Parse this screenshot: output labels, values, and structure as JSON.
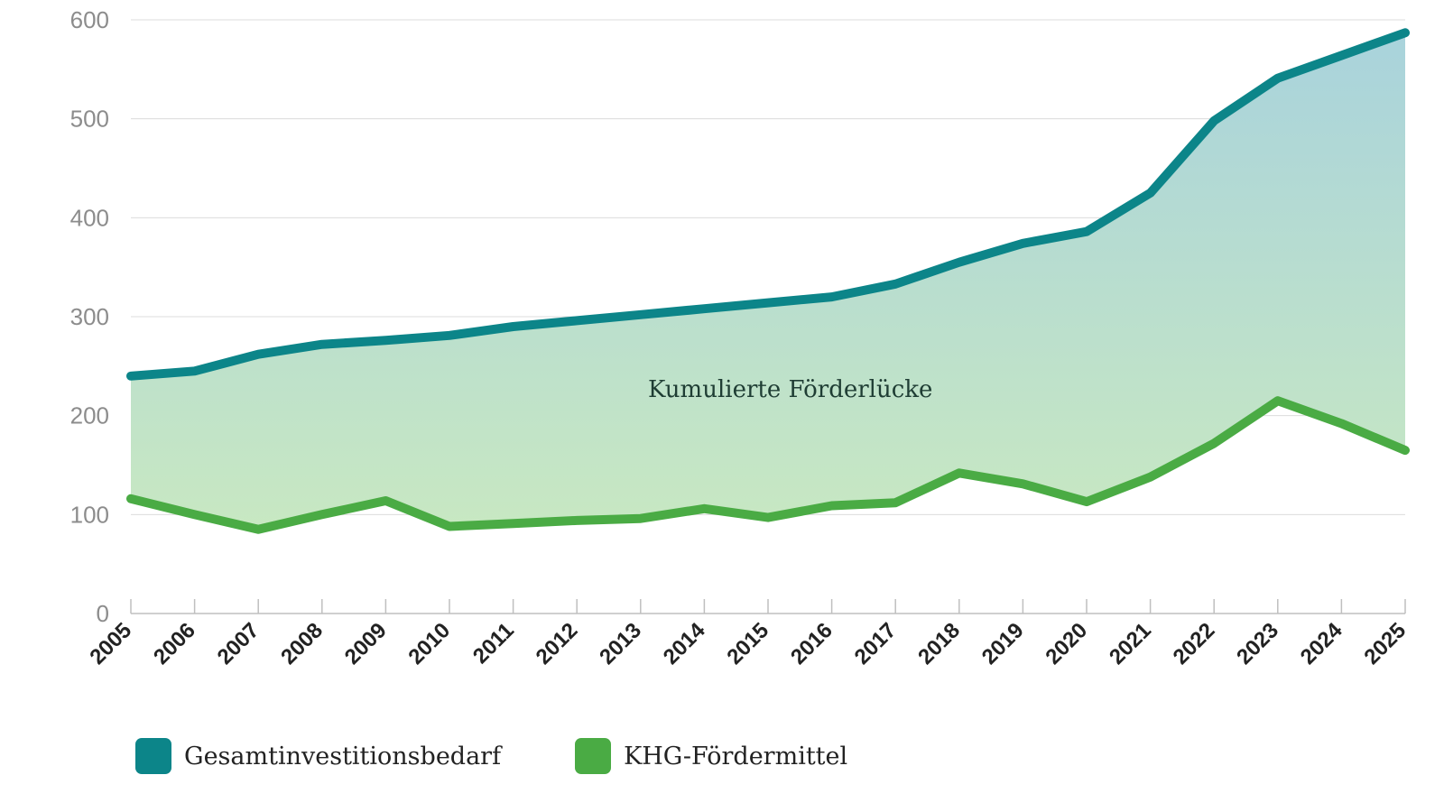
{
  "chart_data": {
    "type": "line",
    "title": "",
    "xlabel": "",
    "ylabel": "",
    "ylim": [
      0,
      600
    ],
    "yticks": [
      0,
      100,
      200,
      300,
      400,
      500,
      600
    ],
    "grid": true,
    "legend_position": "bottom-left",
    "categories": [
      "2005",
      "2006",
      "2007",
      "2008",
      "2009",
      "2010",
      "2011",
      "2012",
      "2013",
      "2014",
      "2015",
      "2016",
      "2017",
      "2018",
      "2019",
      "2020",
      "2021",
      "2022",
      "2023",
      "2024",
      "2025"
    ],
    "series": [
      {
        "name": "Gesamtinvestitionsbedarf",
        "color": "#0c8589",
        "values": [
          240,
          245,
          262,
          272,
          276,
          281,
          290,
          296,
          302,
          308,
          314,
          320,
          333,
          355,
          374,
          386,
          425,
          498,
          541,
          564,
          587
        ]
      },
      {
        "name": "KHG-Fördermittel",
        "color": "#4aab44",
        "values": [
          116,
          100,
          85,
          100,
          114,
          88,
          91,
          94,
          96,
          106,
          97,
          109,
          112,
          142,
          131,
          113,
          138,
          172,
          215,
          192,
          165
        ]
      }
    ],
    "annotations": [
      {
        "text": "Kumulierte Förderlücke"
      }
    ],
    "fill_between": {
      "top_color": "#a9d3dc",
      "bottom_color": "#c8e8c2"
    }
  },
  "legend": {
    "items": [
      {
        "label": "Gesamtinvestitionsbedarf",
        "color": "#0c8589"
      },
      {
        "label": "KHG-Fördermittel",
        "color": "#4aab44"
      }
    ]
  }
}
